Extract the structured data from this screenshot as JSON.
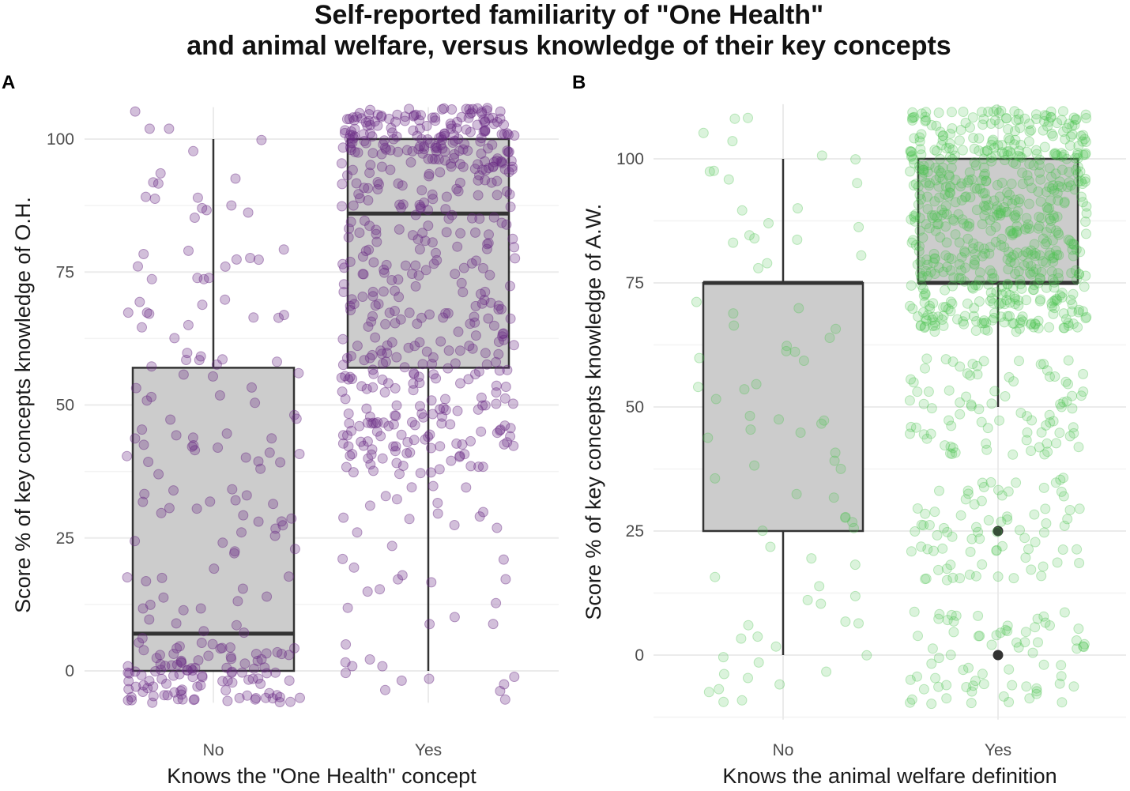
{
  "title": {
    "line1": "Self-reported familiarity of \"One Health\"",
    "line2": "and animal welfare, versus knowledge of their key concepts"
  },
  "chart_data": [
    {
      "type": "boxplot",
      "panel_label": "A",
      "xlabel": "Knows the \"One Health\" concept",
      "ylabel": "Score % of key concepts knowledge of O.H.",
      "categories": [
        "No",
        "Yes"
      ],
      "ylim": [
        -6,
        106
      ],
      "yticks": [
        0,
        25,
        50,
        75,
        100
      ],
      "point_color": "#6a2c86",
      "point_opacity": 0.3,
      "box_fill": "#cccccc",
      "box_line": "#333333",
      "grid": true,
      "boxes": [
        {
          "category": "No",
          "lower_whisker": 0,
          "q1": 0,
          "median": 7,
          "q3": 57,
          "upper_whisker": 100,
          "outliers": []
        },
        {
          "category": "Yes",
          "lower_whisker": 0,
          "q1": 57,
          "median": 86,
          "q3": 100,
          "upper_whisker": 100,
          "outliers": []
        }
      ],
      "jitter_groups": [
        {
          "category": "No",
          "n": 230,
          "bands": [
            [
              -6,
              5,
              0.45
            ],
            [
              5,
              60,
              0.33
            ],
            [
              60,
              106,
              0.22
            ]
          ],
          "seed": 11
        },
        {
          "category": "Yes",
          "n": 560,
          "bands": [
            [
              94,
              106,
              0.3
            ],
            [
              57,
              94,
              0.38
            ],
            [
              37,
              57,
              0.24
            ],
            [
              -6,
              37,
              0.08
            ]
          ],
          "seed": 23
        }
      ]
    },
    {
      "type": "boxplot",
      "panel_label": "B",
      "xlabel": "Knows the animal welfare definition",
      "ylabel": "Score % of key concepts knowledge of A.W.",
      "categories": [
        "No",
        "Yes"
      ],
      "ylim": [
        -13,
        111
      ],
      "yticks": [
        0,
        25,
        50,
        75,
        100
      ],
      "point_color": "#4cc24f",
      "point_opacity": 0.2,
      "box_fill": "#cccccc",
      "box_line": "#333333",
      "grid": true,
      "boxes": [
        {
          "category": "No",
          "lower_whisker": 0,
          "q1": 25,
          "median": 75,
          "q3": 75,
          "upper_whisker": 100,
          "outliers": []
        },
        {
          "category": "Yes",
          "lower_whisker": 50,
          "q1": 75,
          "median": 75,
          "q3": 100,
          "upper_whisker": 100,
          "outliers": [
            25,
            0
          ]
        }
      ],
      "jitter_groups": [
        {
          "category": "No",
          "n": 80,
          "bands": [
            [
              -10,
              12,
              0.28
            ],
            [
              12,
              60,
              0.32
            ],
            [
              60,
              110,
              0.4
            ]
          ],
          "seed": 37
        },
        {
          "category": "Yes",
          "n": 900,
          "bands": [
            [
              65,
              110,
              0.72
            ],
            [
              40,
              60,
              0.1
            ],
            [
              15,
              36,
              0.1
            ],
            [
              -10,
              10,
              0.08
            ]
          ],
          "seed": 53
        }
      ]
    }
  ]
}
